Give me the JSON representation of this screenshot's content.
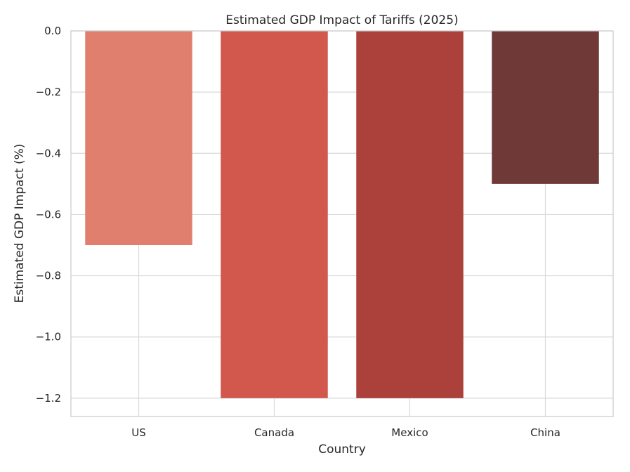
{
  "chart_data": {
    "type": "bar",
    "title": "Estimated GDP Impact of Tariffs (2025)",
    "xlabel": "Country",
    "ylabel": "Estimated GDP Impact (%)",
    "categories": [
      "US",
      "Canada",
      "Mexico",
      "China"
    ],
    "values": [
      -0.7,
      -1.2,
      -1.2,
      -0.5
    ],
    "colors": [
      "#e07f6e",
      "#d2584e",
      "#ab413a",
      "#6e3937"
    ],
    "ylim": [
      -1.26,
      0.0
    ],
    "yticks": [
      0.0,
      -0.2,
      -0.4,
      -0.6,
      -0.8,
      -1.0,
      -1.2
    ],
    "ytick_labels": [
      "0.0",
      "−0.2",
      "−0.4",
      "−0.6",
      "−0.8",
      "−1.0",
      "−1.2"
    ],
    "grid": true,
    "legend": "none"
  }
}
